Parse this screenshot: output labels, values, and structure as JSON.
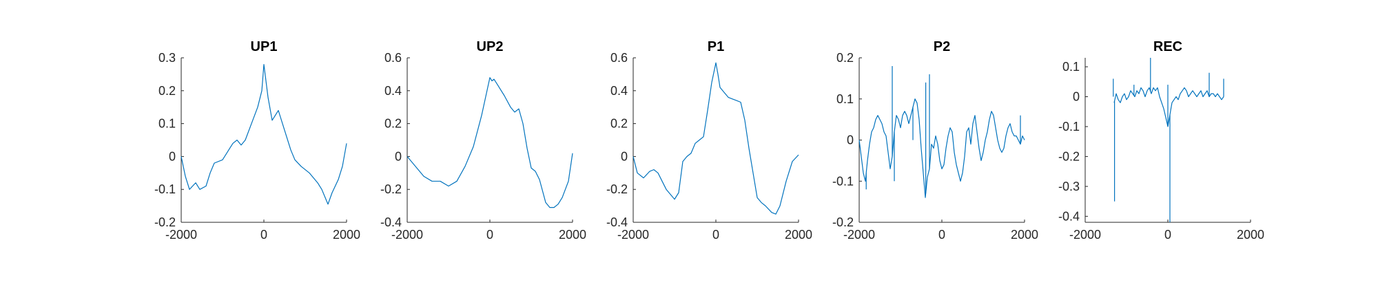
{
  "chart_data": [
    {
      "type": "line",
      "title": "UP1",
      "xlabel": "",
      "ylabel": "",
      "xlim": [
        -2000,
        2000
      ],
      "ylim": [
        -0.2,
        0.3
      ],
      "xticks": [
        "-2000",
        "0",
        "2000"
      ],
      "yticks": [
        "-0.2",
        "-0.1",
        "0",
        "0.1",
        "0.2",
        "0.3"
      ],
      "grid": false,
      "series": [
        {
          "color": "#0072BD",
          "x": [
            -2000,
            -1900,
            -1800,
            -1650,
            -1550,
            -1400,
            -1300,
            -1200,
            -1000,
            -850,
            -750,
            -650,
            -550,
            -450,
            -300,
            -150,
            -50,
            0,
            100,
            200,
            350,
            500,
            650,
            750,
            900,
            1100,
            1300,
            1400,
            1500,
            1550,
            1650,
            1800,
            1900,
            2000
          ],
          "y": [
            0.0,
            -0.06,
            -0.1,
            -0.08,
            -0.1,
            -0.09,
            -0.05,
            -0.02,
            -0.01,
            0.02,
            0.04,
            0.05,
            0.035,
            0.05,
            0.1,
            0.15,
            0.2,
            0.28,
            0.18,
            0.11,
            0.14,
            0.08,
            0.02,
            -0.01,
            -0.03,
            -0.05,
            -0.08,
            -0.1,
            -0.13,
            -0.145,
            -0.11,
            -0.07,
            -0.03,
            0.04
          ]
        }
      ]
    },
    {
      "type": "line",
      "title": "UP2",
      "xlabel": "",
      "ylabel": "",
      "xlim": [
        -2000,
        2000
      ],
      "ylim": [
        -0.4,
        0.6
      ],
      "xticks": [
        "-2000",
        "0",
        "2000"
      ],
      "yticks": [
        "-0.4",
        "-0.2",
        "0",
        "0.2",
        "0.4",
        "0.6"
      ],
      "grid": false,
      "series": [
        {
          "color": "#0072BD",
          "x": [
            -2000,
            -1800,
            -1600,
            -1400,
            -1200,
            -1000,
            -800,
            -600,
            -400,
            -200,
            0,
            50,
            100,
            200,
            350,
            500,
            600,
            700,
            800,
            900,
            1000,
            1100,
            1200,
            1350,
            1450,
            1550,
            1650,
            1750,
            1900,
            2000
          ],
          "y": [
            0.0,
            -0.06,
            -0.12,
            -0.15,
            -0.15,
            -0.18,
            -0.15,
            -0.06,
            0.06,
            0.25,
            0.48,
            0.46,
            0.47,
            0.43,
            0.37,
            0.3,
            0.27,
            0.29,
            0.2,
            0.05,
            -0.07,
            -0.09,
            -0.14,
            -0.28,
            -0.31,
            -0.31,
            -0.29,
            -0.25,
            -0.15,
            0.02
          ]
        }
      ]
    },
    {
      "type": "line",
      "title": "P1",
      "xlabel": "",
      "ylabel": "",
      "xlim": [
        -2000,
        2000
      ],
      "ylim": [
        -0.4,
        0.6
      ],
      "xticks": [
        "-2000",
        "0",
        "2000"
      ],
      "yticks": [
        "-0.4",
        "-0.2",
        "0",
        "0.2",
        "0.4",
        "0.6"
      ],
      "grid": false,
      "series": [
        {
          "color": "#0072BD",
          "x": [
            -2000,
            -1900,
            -1750,
            -1600,
            -1500,
            -1400,
            -1300,
            -1200,
            -1000,
            -900,
            -800,
            -700,
            -600,
            -500,
            -400,
            -300,
            -200,
            -100,
            0,
            50,
            100,
            200,
            300,
            400,
            500,
            600,
            700,
            800,
            900,
            1000,
            1100,
            1200,
            1350,
            1450,
            1550,
            1700,
            1850,
            2000
          ],
          "y": [
            0.0,
            -0.1,
            -0.13,
            -0.09,
            -0.08,
            -0.1,
            -0.15,
            -0.2,
            -0.26,
            -0.22,
            -0.03,
            0.0,
            0.02,
            0.08,
            0.1,
            0.12,
            0.28,
            0.45,
            0.57,
            0.5,
            0.42,
            0.39,
            0.36,
            0.35,
            0.34,
            0.33,
            0.22,
            0.05,
            -0.1,
            -0.25,
            -0.28,
            -0.3,
            -0.34,
            -0.35,
            -0.3,
            -0.15,
            -0.03,
            0.01
          ]
        }
      ]
    },
    {
      "type": "line",
      "title": "P2",
      "xlabel": "",
      "ylabel": "",
      "xlim": [
        -2000,
        2000
      ],
      "ylim": [
        -0.2,
        0.2
      ],
      "xticks": [
        "-2000",
        "0",
        "2000"
      ],
      "yticks": [
        "-0.2",
        "-0.1",
        "0",
        "0.1",
        "0.2"
      ],
      "grid": false,
      "series": [
        {
          "color": "#0072BD",
          "x": [
            -2000,
            -1950,
            -1900,
            -1850,
            -1800,
            -1750,
            -1700,
            -1650,
            -1600,
            -1550,
            -1500,
            -1450,
            -1400,
            -1350,
            -1300,
            -1250,
            -1200,
            -1150,
            -1100,
            -1050,
            -1000,
            -950,
            -900,
            -850,
            -800,
            -750,
            -700,
            -650,
            -600,
            -550,
            -500,
            -450,
            -400,
            -350,
            -300,
            -250,
            -200,
            -150,
            -100,
            -50,
            0,
            50,
            100,
            150,
            200,
            250,
            300,
            350,
            400,
            450,
            500,
            550,
            600,
            650,
            700,
            750,
            800,
            850,
            900,
            950,
            1000,
            1050,
            1100,
            1150,
            1200,
            1250,
            1300,
            1350,
            1400,
            1450,
            1500,
            1550,
            1600,
            1650,
            1700,
            1750,
            1800,
            1850,
            1900,
            1950,
            2000
          ],
          "y": [
            0.0,
            -0.04,
            -0.08,
            -0.1,
            -0.05,
            -0.01,
            0.02,
            0.03,
            0.05,
            0.06,
            0.05,
            0.04,
            0.02,
            0.01,
            -0.03,
            -0.07,
            -0.04,
            0.02,
            0.06,
            0.05,
            0.03,
            0.06,
            0.07,
            0.06,
            0.04,
            0.06,
            0.08,
            0.1,
            0.09,
            0.05,
            -0.02,
            -0.08,
            -0.14,
            -0.09,
            -0.07,
            -0.01,
            -0.02,
            0.01,
            -0.01,
            -0.05,
            -0.07,
            -0.06,
            -0.02,
            0.01,
            0.03,
            0.02,
            -0.03,
            -0.06,
            -0.08,
            -0.1,
            -0.08,
            -0.04,
            0.02,
            0.03,
            -0.01,
            0.04,
            0.06,
            0.02,
            -0.02,
            -0.05,
            -0.03,
            0.0,
            0.02,
            0.05,
            0.07,
            0.06,
            0.03,
            0.0,
            -0.02,
            -0.03,
            -0.02,
            0.01,
            0.03,
            0.04,
            0.02,
            0.01,
            0.01,
            0.0,
            -0.01,
            0.01,
            0.0
          ]
        }
      ],
      "spikes": [
        {
          "x": -1830,
          "y": -0.12
        },
        {
          "x": -1200,
          "y": 0.18
        },
        {
          "x": -1150,
          "y": -0.1
        },
        {
          "x": -700,
          "y": 0.0
        },
        {
          "x": -390,
          "y": 0.14
        },
        {
          "x": -300,
          "y": 0.16
        },
        {
          "x": 1900,
          "y": 0.06
        }
      ]
    },
    {
      "type": "line",
      "title": "REC",
      "xlabel": "",
      "ylabel": "",
      "xlim": [
        -2000,
        2000
      ],
      "ylim": [
        -0.42,
        0.13
      ],
      "xticks": [
        "-2000",
        "0",
        "2000"
      ],
      "yticks": [
        "-0.4",
        "-0.3",
        "-0.2",
        "-0.1",
        "0",
        "0.1"
      ],
      "grid": false,
      "series": [
        {
          "color": "#0072BD",
          "x": [
            -1300,
            -1250,
            -1200,
            -1150,
            -1100,
            -1050,
            -1000,
            -950,
            -900,
            -850,
            -800,
            -750,
            -700,
            -650,
            -600,
            -550,
            -500,
            -450,
            -400,
            -350,
            -300,
            -250,
            -200,
            -150,
            -100,
            -50,
            0,
            50,
            100,
            150,
            200,
            250,
            300,
            350,
            400,
            450,
            500,
            550,
            600,
            650,
            700,
            750,
            800,
            850,
            900,
            950,
            1000,
            1050,
            1100,
            1150,
            1200,
            1250,
            1300,
            1350
          ],
          "y": [
            -0.02,
            0.01,
            -0.01,
            -0.02,
            0.0,
            0.01,
            -0.01,
            0.0,
            0.02,
            0.01,
            0.0,
            0.02,
            0.01,
            0.03,
            0.02,
            0.0,
            0.02,
            0.03,
            0.01,
            0.03,
            0.02,
            0.03,
            0.0,
            -0.02,
            -0.04,
            -0.07,
            -0.1,
            -0.06,
            -0.02,
            -0.01,
            0.0,
            -0.01,
            0.01,
            0.02,
            0.03,
            0.02,
            0.0,
            0.01,
            0.02,
            0.01,
            0.0,
            0.01,
            0.02,
            0.0,
            0.01,
            0.02,
            0.0,
            0.01,
            0.01,
            0.0,
            0.01,
            0.0,
            -0.01,
            0.0
          ]
        }
      ],
      "spikes": [
        {
          "x": -1320,
          "y": 0.06
        },
        {
          "x": -1290,
          "y": -0.35
        },
        {
          "x": -820,
          "y": 0.04
        },
        {
          "x": -420,
          "y": 0.13
        },
        {
          "x": 0,
          "y": 0.04
        },
        {
          "x": 50,
          "y": -0.42
        },
        {
          "x": 1000,
          "y": 0.08
        },
        {
          "x": 1350,
          "y": 0.06
        }
      ]
    }
  ]
}
